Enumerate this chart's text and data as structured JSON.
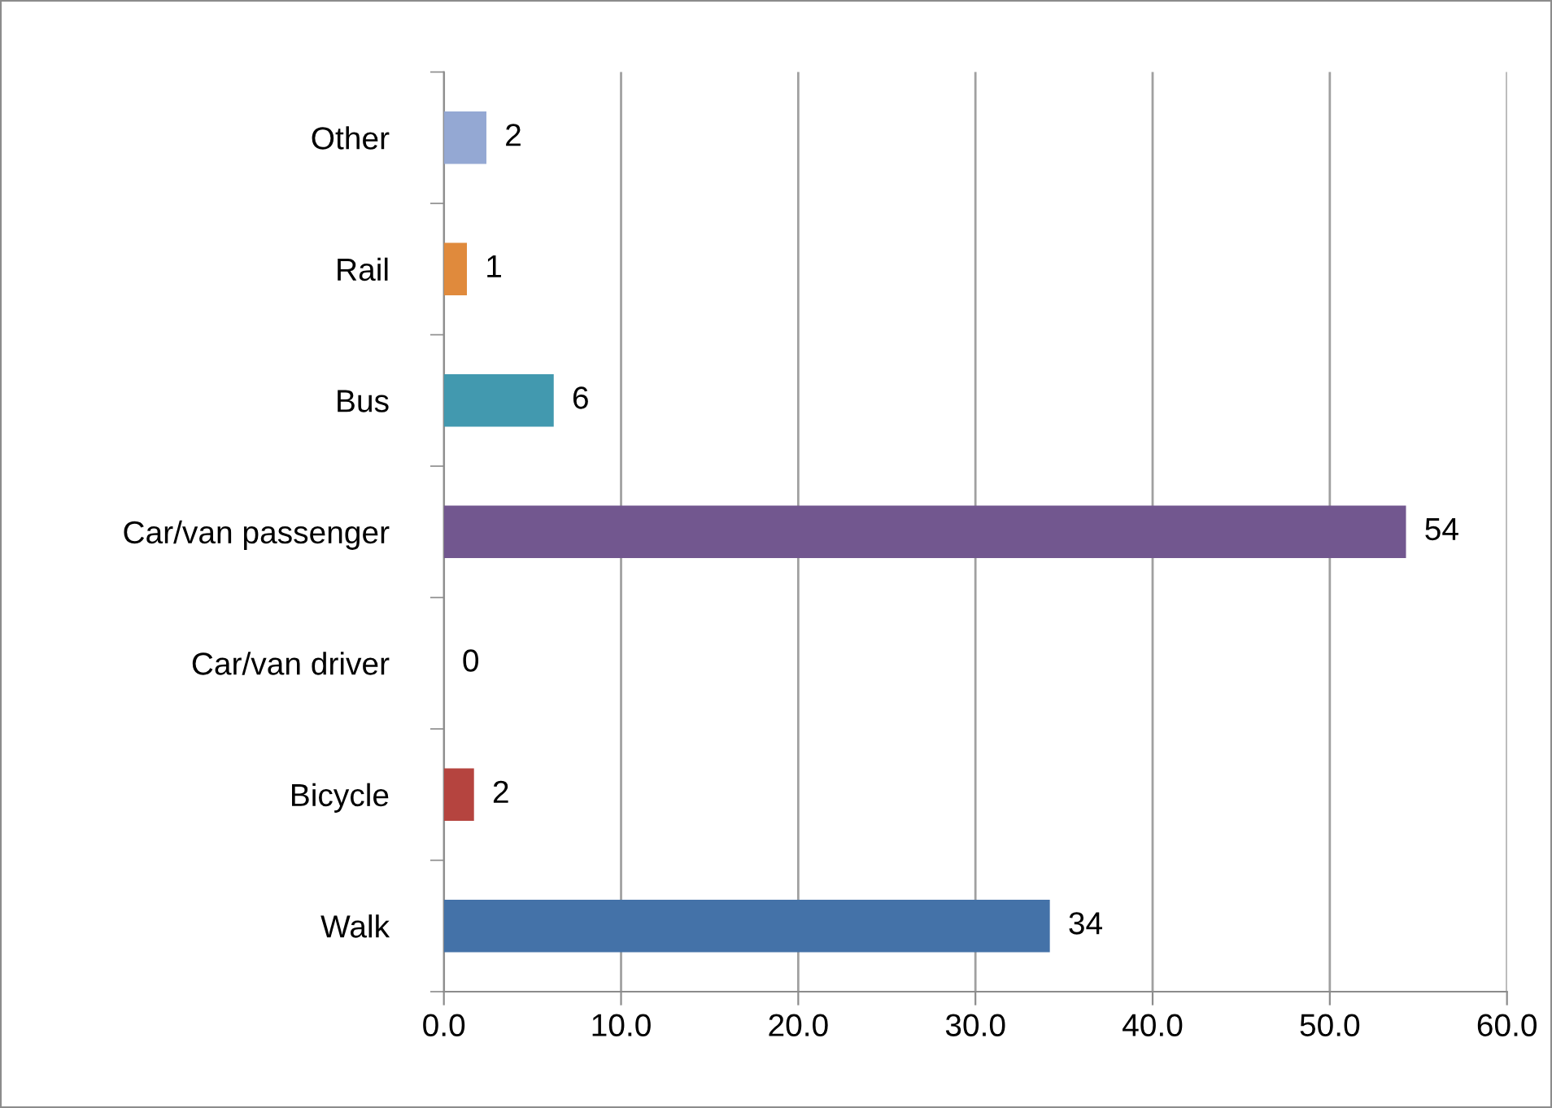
{
  "chart_data": {
    "type": "bar",
    "orientation": "horizontal",
    "categories": [
      "Other",
      "Rail",
      "Bus",
      "Car/van passenger",
      "Car/van driver",
      "Bicycle",
      "Walk"
    ],
    "values": [
      2.4,
      1.3,
      6.2,
      54.3,
      0,
      1.7,
      34.2
    ],
    "value_labels": [
      "2",
      "1",
      "6",
      "54",
      "0",
      "2",
      "34"
    ],
    "colors": [
      "#94a8d3",
      "#e08a3c",
      "#4299af",
      "#72578f",
      "#8aa64f",
      "#b5443f",
      "#4472a8"
    ],
    "xlim": [
      0,
      60
    ],
    "xticks": [
      {
        "value": 0,
        "label": "0.0"
      },
      {
        "value": 10,
        "label": "10.0"
      },
      {
        "value": 20,
        "label": "20.0"
      },
      {
        "value": 30,
        "label": "30.0"
      },
      {
        "value": 40,
        "label": "40.0"
      },
      {
        "value": 50,
        "label": "50.0"
      },
      {
        "value": 60,
        "label": "60.0"
      }
    ],
    "grid": "x",
    "legend": false
  }
}
